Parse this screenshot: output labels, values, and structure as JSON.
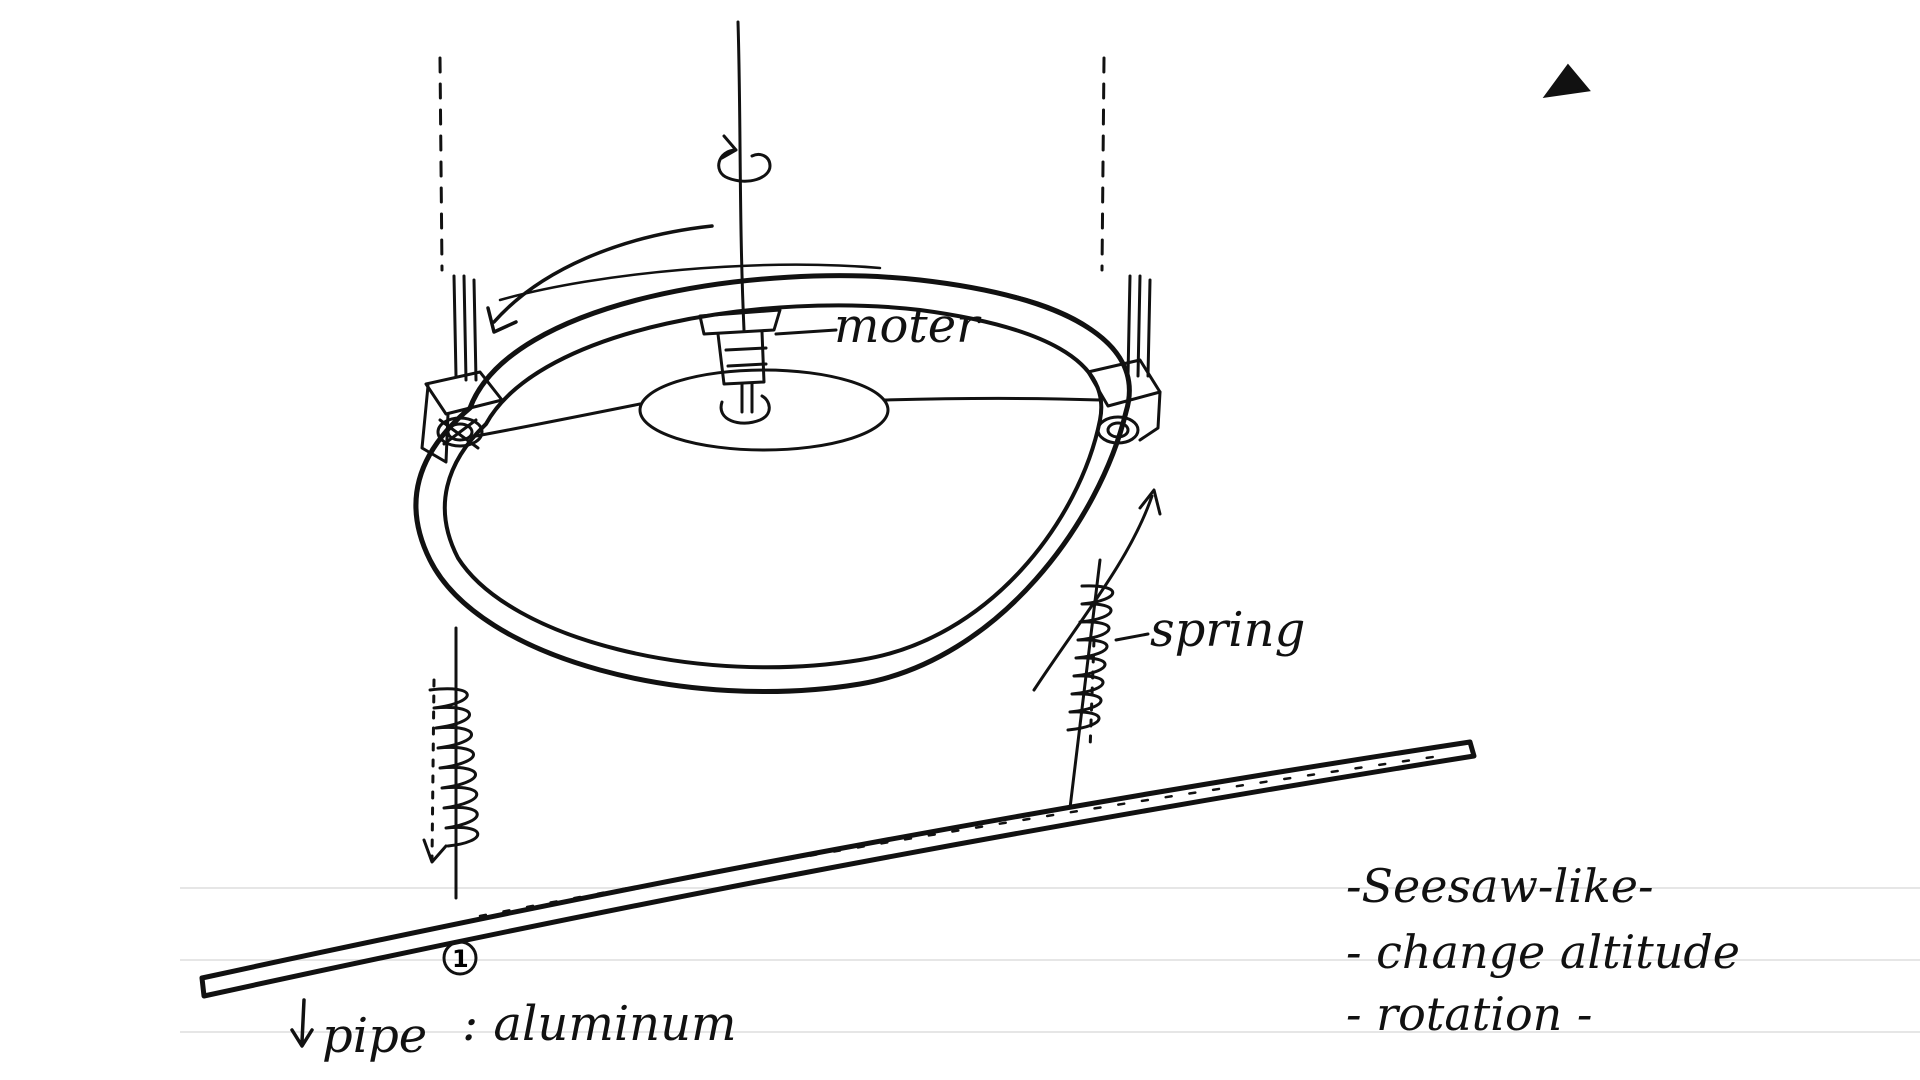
{
  "labels": {
    "motor": "moter",
    "spring": "spring",
    "pipe": "pipe",
    "material": ": aluminum",
    "marker": "1"
  },
  "notes": [
    "-Seesaw-like-",
    "- change altitude",
    "- rotation -"
  ],
  "colors": {
    "ink": "#111111",
    "paper": "#ffffff",
    "ruled_line": "#e6e6e6"
  },
  "icons": {
    "rotation": "circular-arrow-icon",
    "corner_mark": "triangle-mark-icon"
  }
}
